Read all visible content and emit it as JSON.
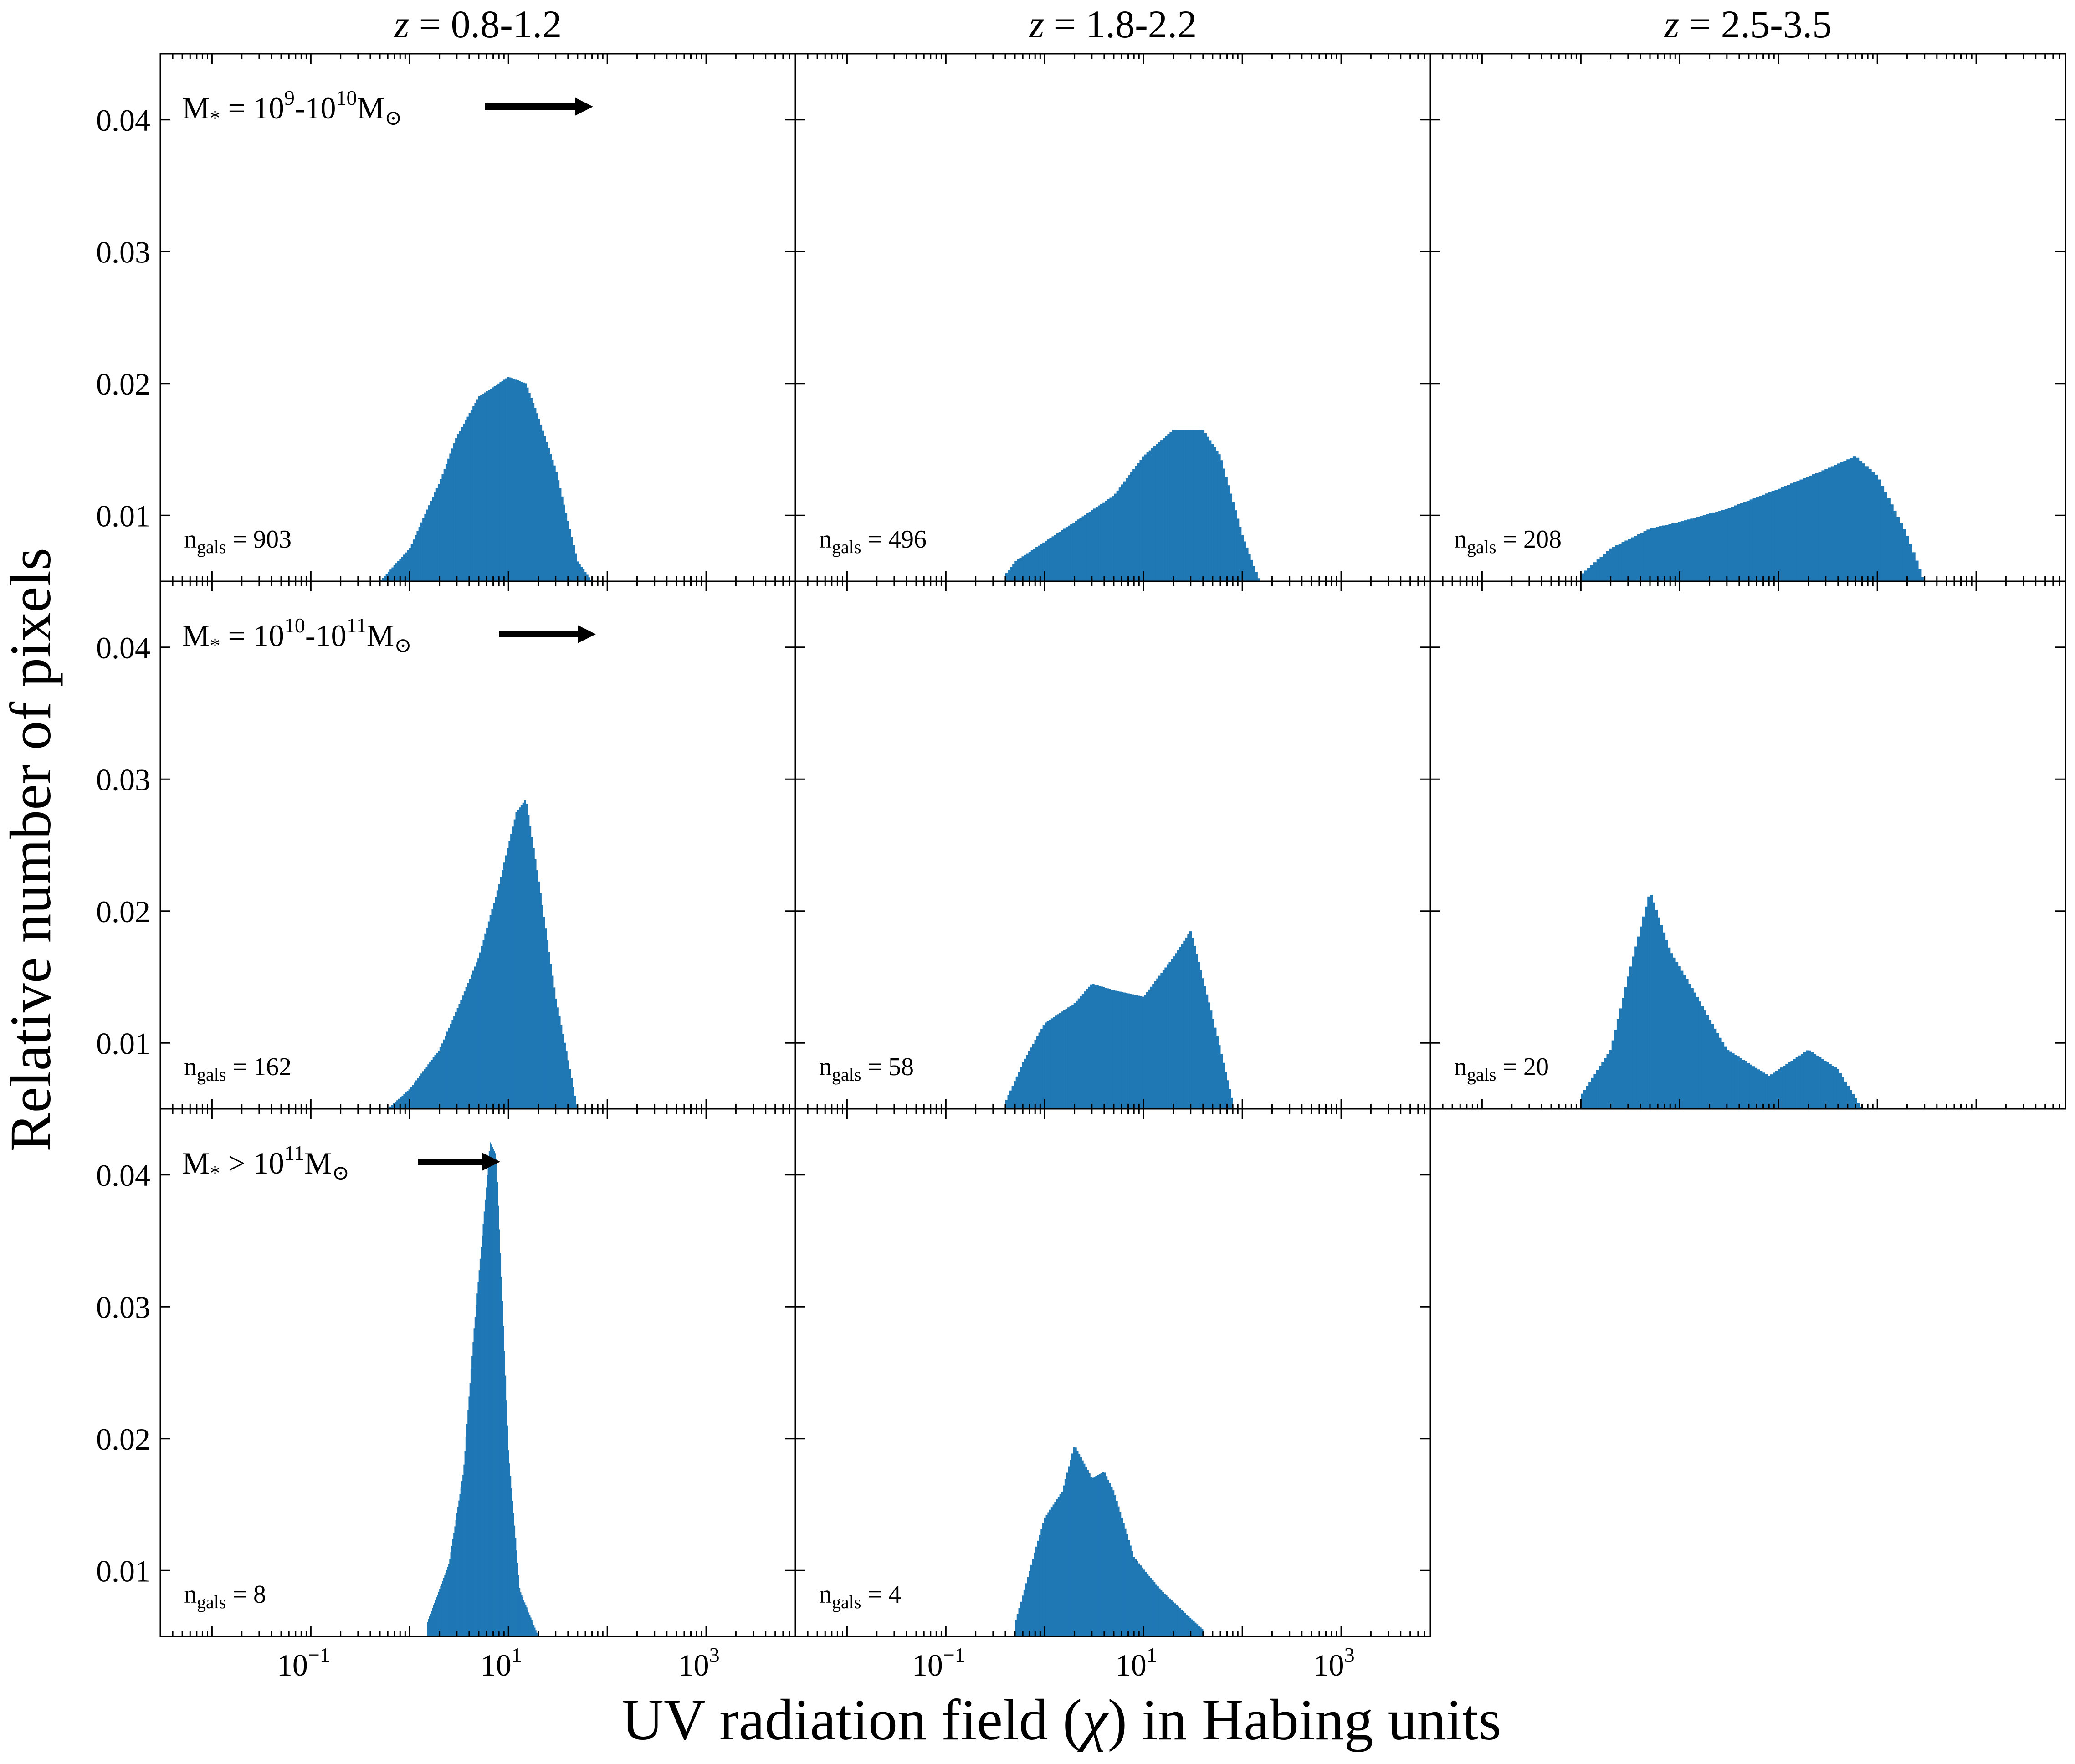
{
  "figure": {
    "xlabel_pre": "UV radiation field (",
    "xlabel_sym": "χ",
    "xlabel_post": ") in Habing units",
    "ylabel": "Relative number of pixels",
    "column_titles": [
      {
        "z": "z",
        "range": " = 0.8-1.2"
      },
      {
        "z": "z",
        "range": " = 1.8-2.2"
      },
      {
        "z": "z",
        "range": " = 2.5-3.5"
      }
    ],
    "row_labels": [
      {
        "lhs": "M",
        "lhs_sub": "*",
        "rel": " = 10",
        "e1": "9",
        "mid": "-10",
        "e2": "10",
        "unit": "M",
        "sun": "⊙"
      },
      {
        "lhs": "M",
        "lhs_sub": "*",
        "rel": " = 10",
        "e1": "10",
        "mid": "-10",
        "e2": "11",
        "unit": "M",
        "sun": "⊙"
      },
      {
        "lhs": "M",
        "lhs_sub": "*",
        "rel": " > 10",
        "e1": "11",
        "mid": "",
        "e2": "",
        "unit": "M",
        "sun": "⊙"
      }
    ],
    "ngals_symbol": "n",
    "ngals_sub": "gals",
    "ngals_eq": " = ",
    "ytick_labels": [
      "0.01",
      "0.02",
      "0.03",
      "0.04"
    ],
    "xtick_base": "10",
    "xtick_exponents": [
      "−1",
      "1",
      "3"
    ],
    "bar_color": "#1f77b4"
  },
  "chart_data": [
    {
      "type": "bar",
      "row": 0,
      "col": 0,
      "ngals": "903",
      "x_scale": "log",
      "xlim": [
        0.003,
        8000
      ],
      "ylim": [
        0.005,
        0.045
      ],
      "x": [
        0.5,
        1,
        2,
        3,
        5,
        10,
        15,
        20,
        30,
        50,
        70
      ],
      "y": [
        0.005,
        0.0075,
        0.0125,
        0.016,
        0.019,
        0.0205,
        0.02,
        0.0175,
        0.0135,
        0.0065,
        0.005
      ]
    },
    {
      "type": "bar",
      "row": 0,
      "col": 1,
      "ngals": "496",
      "x_scale": "log",
      "xlim": [
        0.003,
        8000
      ],
      "ylim": [
        0.005,
        0.045
      ],
      "x": [
        0.4,
        0.5,
        1,
        2,
        5,
        10,
        20,
        40,
        60,
        100,
        150
      ],
      "y": [
        0.0055,
        0.0065,
        0.008,
        0.0095,
        0.0115,
        0.0145,
        0.0165,
        0.0165,
        0.0145,
        0.0085,
        0.005
      ]
    },
    {
      "type": "bar",
      "row": 0,
      "col": 2,
      "ngals": "208",
      "x_scale": "log",
      "xlim": [
        0.003,
        8000
      ],
      "ylim": [
        0.005,
        0.045
      ],
      "x": [
        0.1,
        0.2,
        0.5,
        1,
        3,
        10,
        30,
        60,
        100,
        200,
        300
      ],
      "y": [
        0.0055,
        0.0075,
        0.009,
        0.0095,
        0.0105,
        0.012,
        0.0135,
        0.0145,
        0.013,
        0.0085,
        0.005
      ]
    },
    {
      "type": "bar",
      "row": 1,
      "col": 0,
      "ngals": "162",
      "x_scale": "log",
      "xlim": [
        0.003,
        8000
      ],
      "ylim": [
        0.005,
        0.045
      ],
      "x": [
        0.6,
        1,
        2,
        3,
        5,
        8,
        12,
        15,
        20,
        30,
        50
      ],
      "y": [
        0.005,
        0.0065,
        0.0095,
        0.0125,
        0.0165,
        0.022,
        0.0275,
        0.0285,
        0.0225,
        0.0135,
        0.005
      ]
    },
    {
      "type": "bar",
      "row": 1,
      "col": 1,
      "ngals": "58",
      "x_scale": "log",
      "xlim": [
        0.003,
        8000
      ],
      "ylim": [
        0.005,
        0.045
      ],
      "x": [
        0.4,
        0.6,
        1,
        2,
        3,
        5,
        10,
        20,
        30,
        50,
        80
      ],
      "y": [
        0.0055,
        0.0085,
        0.0115,
        0.013,
        0.0145,
        0.014,
        0.0135,
        0.0165,
        0.0185,
        0.012,
        0.0055
      ]
    },
    {
      "type": "bar",
      "row": 1,
      "col": 2,
      "ngals": "20",
      "x_scale": "log",
      "xlim": [
        0.003,
        8000
      ],
      "ylim": [
        0.005,
        0.045
      ],
      "x": [
        0.1,
        0.2,
        0.3,
        0.5,
        0.8,
        1.5,
        3,
        8,
        20,
        40,
        70
      ],
      "y": [
        0.006,
        0.0095,
        0.015,
        0.0215,
        0.017,
        0.0135,
        0.0095,
        0.0075,
        0.0095,
        0.008,
        0.005
      ]
    },
    {
      "type": "bar",
      "row": 2,
      "col": 0,
      "ngals": "8",
      "x_scale": "log",
      "xlim": [
        0.003,
        8000
      ],
      "ylim": [
        0.005,
        0.045
      ],
      "x": [
        1.5,
        2.5,
        3.5,
        4.5,
        5.5,
        6.5,
        7.5,
        8.5,
        10,
        13,
        20
      ],
      "y": [
        0.006,
        0.0105,
        0.0175,
        0.0285,
        0.036,
        0.0425,
        0.0415,
        0.032,
        0.019,
        0.0085,
        0.005
      ]
    },
    {
      "type": "bar",
      "row": 2,
      "col": 1,
      "ngals": "4",
      "x_scale": "log",
      "xlim": [
        0.003,
        8000
      ],
      "ylim": [
        0.005,
        0.045
      ],
      "x": [
        0.5,
        0.8,
        1,
        1.5,
        2,
        3,
        4,
        5,
        8,
        15,
        40
      ],
      "y": [
        0.006,
        0.0115,
        0.014,
        0.016,
        0.0195,
        0.017,
        0.0175,
        0.016,
        0.011,
        0.0085,
        0.0055
      ]
    }
  ]
}
